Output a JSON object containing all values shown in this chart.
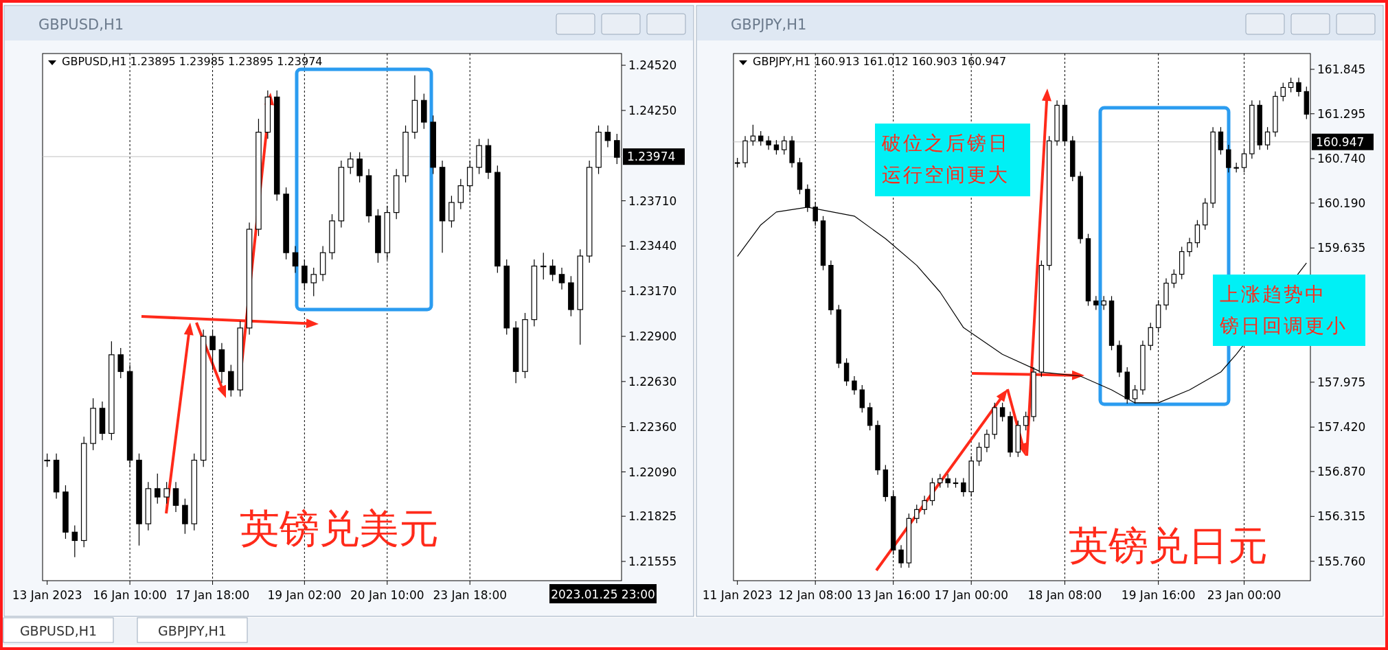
{
  "chart_data": [
    {
      "type": "candlestick",
      "title": "GBPUSD,H1",
      "subtitle": "GBPUSD,H1  1.23895 1.23985 1.23895 1.23974",
      "categories": [
        "13 Jan 2023",
        null,
        null,
        null,
        null,
        null,
        null,
        null,
        null,
        "16 Jan 10:00",
        null,
        null,
        null,
        null,
        null,
        null,
        null,
        null,
        "17 Jan 18:00",
        null,
        null,
        null,
        null,
        null,
        null,
        null,
        null,
        null,
        "19 Jan 02:00",
        null,
        null,
        null,
        null,
        null,
        null,
        null,
        null,
        "20 Jan 10:00",
        null,
        null,
        null,
        null,
        null,
        null,
        null,
        null,
        "23 Jan 18:00",
        null,
        null,
        null,
        null,
        null,
        null,
        null,
        null,
        null,
        null,
        null,
        null,
        null,
        null,
        null,
        null
      ],
      "ohlc": [
        [
          1.2216,
          1.222,
          1.2212,
          1.2216
        ],
        [
          1.2216,
          1.222,
          1.2193,
          1.2197
        ],
        [
          1.2197,
          1.2201,
          1.2169,
          1.2173
        ],
        [
          1.2173,
          1.2177,
          1.2158,
          1.2168
        ],
        [
          1.2168,
          1.223,
          1.2164,
          1.2226
        ],
        [
          1.2226,
          1.2253,
          1.2222,
          1.2247
        ],
        [
          1.2247,
          1.2251,
          1.2228,
          1.2232
        ],
        [
          1.2232,
          1.2287,
          1.2228,
          1.2279
        ],
        [
          1.2279,
          1.2283,
          1.2265,
          1.2269
        ],
        [
          1.2269,
          1.2273,
          1.2212,
          1.2216
        ],
        [
          1.2216,
          1.222,
          1.2165,
          1.2178
        ],
        [
          1.2178,
          1.2203,
          1.2174,
          1.2199
        ],
        [
          1.2199,
          1.2208,
          1.219,
          1.2194
        ],
        [
          1.2194,
          1.2203,
          1.219,
          1.2199
        ],
        [
          1.2199,
          1.2203,
          1.2185,
          1.2189
        ],
        [
          1.2189,
          1.2193,
          1.2172,
          1.2178
        ],
        [
          1.2178,
          1.222,
          1.2174,
          1.2216
        ],
        [
          1.2216,
          1.2294,
          1.2212,
          1.229
        ],
        [
          1.229,
          1.2294,
          1.227,
          1.2282
        ],
        [
          1.2282,
          1.2286,
          1.2262,
          1.2269
        ],
        [
          1.2269,
          1.2273,
          1.2254,
          1.2258
        ],
        [
          1.2258,
          1.2299,
          1.2254,
          1.2295
        ],
        [
          1.2295,
          1.2358,
          1.2291,
          1.2354
        ],
        [
          1.2354,
          1.242,
          1.235,
          1.2412
        ],
        [
          1.2412,
          1.2437,
          1.2408,
          1.2433
        ],
        [
          1.2433,
          1.2437,
          1.2371,
          1.2375
        ],
        [
          1.2375,
          1.2379,
          1.2336,
          1.234
        ],
        [
          1.234,
          1.2344,
          1.2328,
          1.2332
        ],
        [
          1.2332,
          1.2336,
          1.2318,
          1.2322
        ],
        [
          1.2322,
          1.2331,
          1.2314,
          1.2327
        ],
        [
          1.2327,
          1.2344,
          1.2323,
          1.234
        ],
        [
          1.234,
          1.2363,
          1.2336,
          1.2359
        ],
        [
          1.2359,
          1.2395,
          1.2355,
          1.2391
        ],
        [
          1.2391,
          1.24,
          1.2387,
          1.2396
        ],
        [
          1.2396,
          1.24,
          1.2382,
          1.2386
        ],
        [
          1.2386,
          1.239,
          1.2358,
          1.2362
        ],
        [
          1.2362,
          1.2366,
          1.2334,
          1.234
        ],
        [
          1.234,
          1.2368,
          1.2336,
          1.2364
        ],
        [
          1.2364,
          1.239,
          1.236,
          1.2386
        ],
        [
          1.2386,
          1.2416,
          1.2382,
          1.2412
        ],
        [
          1.2412,
          1.2446,
          1.2408,
          1.2431
        ],
        [
          1.2431,
          1.2435,
          1.2414,
          1.2418
        ],
        [
          1.2418,
          1.2422,
          1.2387,
          1.2391
        ],
        [
          1.2391,
          1.2395,
          1.234,
          1.2359
        ],
        [
          1.2359,
          1.2374,
          1.2355,
          1.237
        ],
        [
          1.237,
          1.2384,
          1.2366,
          1.238
        ],
        [
          1.238,
          1.2395,
          1.2376,
          1.2391
        ],
        [
          1.2391,
          1.2408,
          1.2387,
          1.2404
        ],
        [
          1.2404,
          1.2408,
          1.2384,
          1.2388
        ],
        [
          1.2388,
          1.2392,
          1.2328,
          1.2332
        ],
        [
          1.2332,
          1.2336,
          1.2291,
          1.2295
        ],
        [
          1.2295,
          1.2299,
          1.2262,
          1.2269
        ],
        [
          1.2269,
          1.2304,
          1.2265,
          1.23
        ],
        [
          1.23,
          1.2336,
          1.2296,
          1.2332
        ],
        [
          1.2332,
          1.234,
          1.2324,
          1.2332
        ],
        [
          1.2332,
          1.2336,
          1.2323,
          1.2327
        ],
        [
          1.2327,
          1.2331,
          1.2318,
          1.2322
        ],
        [
          1.2322,
          1.2326,
          1.2302,
          1.2306
        ],
        [
          1.2306,
          1.2342,
          1.2285,
          1.2338
        ],
        [
          1.2338,
          1.2395,
          1.2334,
          1.2391
        ],
        [
          1.2391,
          1.2416,
          1.2387,
          1.2412
        ],
        [
          1.2412,
          1.2416,
          1.2403,
          1.2407
        ],
        [
          1.2407,
          1.2411,
          1.2393,
          1.2397
        ]
      ],
      "ylim": [
        1.2144,
        1.2459
      ],
      "yticks": [
        {
          "value": 1.21555,
          "label": "1.21555"
        },
        {
          "value": 1.21825,
          "label": "1.21825"
        },
        {
          "value": 1.2209,
          "label": "1.22090"
        },
        {
          "value": 1.2236,
          "label": "1.22360"
        },
        {
          "value": 1.2263,
          "label": "1.22630"
        },
        {
          "value": 1.229,
          "label": "1.22900"
        },
        {
          "value": 1.2317,
          "label": "1.23170"
        },
        {
          "value": 1.2344,
          "label": "1.23440"
        },
        {
          "value": 1.2371,
          "label": "1.23710"
        },
        {
          "value": 1.2425,
          "label": "1.24250"
        },
        {
          "value": 1.2452,
          "label": "1.24520"
        }
      ],
      "grid": "x",
      "ref_lines": [
        {
          "axis": "y",
          "value": 1.23974,
          "label": "1.23974",
          "color": "#c0c0c0"
        }
      ],
      "annotations": [
        "英镑兑美元",
        "2023.01.25 23:00",
        "GBPUSD,H1"
      ]
    },
    {
      "type": "candlestick",
      "title": "GBPJPY,H1",
      "subtitle": "GBPJPY,H1  160.913 161.012 160.903 160.947",
      "categories": [
        "11 Jan 2023",
        null,
        null,
        null,
        null,
        null,
        null,
        null,
        null,
        null,
        "12 Jan 08:00",
        null,
        null,
        null,
        null,
        null,
        null,
        null,
        null,
        null,
        "13 Jan 16:00",
        null,
        null,
        null,
        null,
        null,
        null,
        null,
        null,
        null,
        "17 Jan 00:00",
        null,
        null,
        null,
        null,
        null,
        null,
        null,
        null,
        null,
        null,
        null,
        "18 Jan 08:00",
        null,
        null,
        null,
        null,
        null,
        null,
        null,
        null,
        null,
        null,
        null,
        "19 Jan 16:00",
        null,
        null,
        null,
        null,
        null,
        null,
        null,
        null,
        null,
        null,
        "23 Jan 00:00",
        null,
        null,
        null,
        null,
        null,
        null,
        null,
        null
      ],
      "ohlc": [
        [
          160.69,
          160.75,
          160.63,
          160.69
        ],
        [
          160.69,
          161.02,
          160.63,
          160.96
        ],
        [
          160.96,
          161.16,
          160.9,
          161.02
        ],
        [
          161.02,
          161.08,
          160.9,
          160.96
        ],
        [
          160.96,
          161.02,
          160.85,
          160.91
        ],
        [
          160.91,
          160.97,
          160.79,
          160.85
        ],
        [
          160.85,
          161.02,
          160.79,
          160.96
        ],
        [
          160.96,
          161.02,
          160.63,
          160.69
        ],
        [
          160.69,
          160.75,
          160.3,
          160.36
        ],
        [
          160.36,
          160.42,
          160.08,
          160.14
        ],
        [
          160.14,
          160.2,
          159.91,
          159.97
        ],
        [
          159.97,
          160.03,
          159.36,
          159.42
        ],
        [
          159.42,
          159.48,
          158.81,
          158.87
        ],
        [
          158.87,
          158.93,
          158.15,
          158.21
        ],
        [
          158.21,
          158.27,
          157.93,
          157.99
        ],
        [
          157.99,
          158.05,
          157.82,
          157.88
        ],
        [
          157.88,
          157.94,
          157.6,
          157.66
        ],
        [
          157.66,
          157.72,
          157.38,
          157.44
        ],
        [
          157.44,
          157.5,
          156.83,
          156.89
        ],
        [
          156.89,
          156.95,
          156.5,
          156.56
        ],
        [
          156.56,
          156.62,
          155.84,
          155.9
        ],
        [
          155.9,
          155.96,
          155.68,
          155.74
        ],
        [
          155.74,
          156.35,
          155.68,
          156.29
        ],
        [
          156.29,
          156.46,
          156.23,
          156.4
        ],
        [
          156.4,
          156.57,
          156.34,
          156.51
        ],
        [
          156.51,
          156.79,
          156.45,
          156.73
        ],
        [
          156.73,
          156.84,
          156.67,
          156.78
        ],
        [
          156.78,
          156.84,
          156.67,
          156.73
        ],
        [
          156.73,
          156.79,
          156.67,
          156.73
        ],
        [
          156.73,
          156.79,
          156.56,
          156.62
        ],
        [
          156.62,
          157.06,
          156.56,
          157.0
        ],
        [
          157.0,
          157.23,
          156.94,
          157.17
        ],
        [
          157.17,
          157.39,
          157.11,
          157.33
        ],
        [
          157.33,
          157.72,
          157.27,
          157.66
        ],
        [
          157.66,
          157.72,
          157.49,
          157.55
        ],
        [
          157.55,
          157.61,
          157.05,
          157.11
        ],
        [
          157.11,
          157.5,
          157.05,
          157.44
        ],
        [
          157.44,
          157.61,
          157.38,
          157.55
        ],
        [
          157.55,
          158.16,
          157.49,
          158.1
        ],
        [
          158.1,
          159.48,
          158.04,
          159.42
        ],
        [
          159.42,
          161.02,
          159.36,
          160.96
        ],
        [
          160.96,
          161.46,
          160.9,
          161.4
        ],
        [
          161.4,
          161.46,
          160.9,
          160.96
        ],
        [
          160.96,
          161.02,
          160.46,
          160.52
        ],
        [
          160.52,
          160.58,
          159.69,
          159.75
        ],
        [
          159.75,
          159.81,
          158.92,
          158.98
        ],
        [
          158.98,
          159.04,
          158.87,
          158.93
        ],
        [
          158.93,
          159.04,
          158.87,
          158.98
        ],
        [
          158.98,
          159.04,
          158.37,
          158.43
        ],
        [
          158.43,
          158.49,
          158.04,
          158.1
        ],
        [
          158.1,
          158.16,
          157.71,
          157.77
        ],
        [
          157.77,
          157.94,
          157.71,
          157.88
        ],
        [
          157.88,
          158.49,
          157.82,
          158.43
        ],
        [
          158.43,
          158.71,
          158.37,
          158.65
        ],
        [
          158.65,
          158.99,
          158.59,
          158.93
        ],
        [
          158.93,
          159.26,
          158.87,
          159.2
        ],
        [
          159.2,
          159.37,
          159.14,
          159.31
        ],
        [
          159.31,
          159.65,
          159.25,
          159.59
        ],
        [
          159.59,
          159.76,
          159.53,
          159.7
        ],
        [
          159.7,
          159.98,
          159.64,
          159.92
        ],
        [
          159.92,
          160.25,
          159.86,
          160.19
        ],
        [
          160.19,
          161.13,
          160.13,
          161.07
        ],
        [
          161.07,
          161.13,
          160.79,
          160.85
        ],
        [
          160.85,
          160.91,
          160.57,
          160.63
        ],
        [
          160.63,
          160.69,
          160.57,
          160.63
        ],
        [
          160.63,
          160.86,
          160.57,
          160.8
        ],
        [
          160.8,
          161.46,
          160.74,
          161.4
        ],
        [
          161.4,
          161.46,
          160.85,
          160.91
        ],
        [
          160.91,
          161.13,
          160.85,
          161.07
        ],
        [
          161.07,
          161.57,
          161.01,
          161.51
        ],
        [
          161.51,
          161.68,
          161.45,
          161.62
        ],
        [
          161.62,
          161.74,
          161.56,
          161.68
        ],
        [
          161.68,
          161.74,
          161.51,
          161.57
        ],
        [
          161.57,
          161.63,
          161.23,
          161.29
        ]
      ],
      "series": [
        {
          "type": "line",
          "color": "#000000",
          "values": [
            159.53,
            null,
            null,
            159.92,
            null,
            160.08,
            null,
            null,
            null,
            160.14,
            null,
            null,
            null,
            null,
            null,
            160.03,
            null,
            null,
            null,
            159.75,
            null,
            null,
            null,
            159.42,
            null,
            null,
            159.09,
            null,
            null,
            158.65,
            null,
            null,
            null,
            null,
            158.32,
            null,
            null,
            null,
            null,
            158.1,
            null,
            null,
            null,
            null,
            158.05,
            null,
            null,
            null,
            157.88,
            null,
            null,
            157.72,
            null,
            null,
            157.72,
            null,
            null,
            null,
            157.88,
            null,
            null,
            null,
            158.1,
            null,
            158.32,
            null,
            null,
            null,
            null,
            null,
            null,
            null,
            null,
            159.45
          ]
        }
      ],
      "ylim": [
        155.52,
        162.04
      ],
      "yticks": [
        {
          "value": 155.76,
          "label": "155.760"
        },
        {
          "value": 156.315,
          "label": "156.315"
        },
        {
          "value": 156.87,
          "label": "156.870"
        },
        {
          "value": 157.42,
          "label": "157.420"
        },
        {
          "value": 157.975,
          "label": "157.975"
        },
        {
          "value": 159.635,
          "label": "159.635"
        },
        {
          "value": 160.19,
          "label": "160.190"
        },
        {
          "value": 160.74,
          "label": "160.740"
        },
        {
          "value": 161.295,
          "label": "161.295"
        },
        {
          "value": 161.845,
          "label": "161.845"
        }
      ],
      "grid": "x",
      "ref_lines": [
        {
          "axis": "y",
          "value": 160.947,
          "label": "160.947",
          "color": "#c0c0c0"
        }
      ],
      "annotations": [
        "破位之后镑日",
        "运行空间更大",
        "上涨趋势中",
        "镑日回调更小",
        "英镑兑日元",
        "GBPJPY,H1"
      ]
    }
  ]
}
